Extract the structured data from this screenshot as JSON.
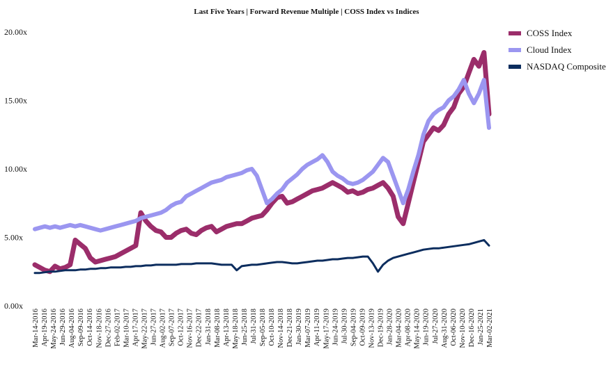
{
  "chart_data": {
    "type": "line",
    "title": "Last Five Years | Forward Revenue Multiple | COSS Index vs Indices",
    "xlabel": "",
    "ylabel": "",
    "ylim": [
      0,
      20
    ],
    "y_ticks": [
      "0.00x",
      "5.00x",
      "10.00x",
      "15.00x",
      "20.00x"
    ],
    "x_tick_labels": [
      "Mar-14-2016",
      "Apr-19-2016",
      "May-24-2016",
      "Jun-29-2016",
      "Aug-04-2016",
      "Sep-09-2016",
      "Oct-14-2016",
      "Nov-18-2016",
      "Dec-27-2016",
      "Feb-02-2017",
      "Mar-10-2017",
      "Apr-17-2017",
      "May-22-2017",
      "Jun-27-2017",
      "Aug-02-2017",
      "Sep-07-2017",
      "Oct-12-2017",
      "Nov-16-2017",
      "Dec-22-2017",
      "Jan-31-2018",
      "Mar-08-2018",
      "Apr-13-2018",
      "May-18-2018",
      "Jun-25-2018",
      "Jul-31-2018",
      "Sep-05-2018",
      "Oct-10-2018",
      "Nov-14-2018",
      "Dec-21-2018",
      "Jan-30-2019",
      "Mar-07-2019",
      "Apr-11-2019",
      "May-17-2019",
      "Jun-24-2019",
      "Jul-30-2019",
      "Sep-04-2019",
      "Oct-09-2019",
      "Nov-13-2019",
      "Dec-19-2019",
      "Jan-28-2020",
      "Mar-04-2020",
      "Apr-08-2020",
      "May-14-2020",
      "Jun-19-2020",
      "Jul-27-2020",
      "Aug-31-2020",
      "Oct-06-2020",
      "Nov-10-2020",
      "Dec-16-2020",
      "Jan-25-2021",
      "Mar-02-2021"
    ],
    "grid": false,
    "legend_position": "top-right",
    "series": [
      {
        "name": "COSS Index",
        "color": "#9b2d6a",
        "values": [
          3.0,
          2.8,
          2.6,
          2.5,
          2.9,
          2.7,
          2.8,
          3.0,
          4.8,
          4.5,
          4.2,
          3.5,
          3.2,
          3.3,
          3.4,
          3.5,
          3.6,
          3.8,
          4.0,
          4.2,
          4.4,
          6.8,
          6.2,
          5.8,
          5.5,
          5.4,
          5.0,
          5.0,
          5.3,
          5.5,
          5.6,
          5.3,
          5.2,
          5.5,
          5.7,
          5.8,
          5.4,
          5.6,
          5.8,
          5.9,
          6.0,
          6.0,
          6.2,
          6.4,
          6.5,
          6.6,
          7.0,
          7.5,
          7.9,
          8.0,
          7.5,
          7.6,
          7.8,
          8.0,
          8.2,
          8.4,
          8.5,
          8.6,
          8.8,
          9.0,
          8.8,
          8.6,
          8.3,
          8.4,
          8.2,
          8.3,
          8.5,
          8.6,
          8.8,
          9.0,
          8.6,
          8.0,
          6.5,
          6.0,
          7.5,
          9.0,
          10.5,
          12.0,
          12.5,
          13.0,
          12.8,
          13.2,
          14.0,
          14.5,
          15.5,
          16.0,
          17.0,
          18.0,
          17.5,
          18.5,
          14.0
        ]
      },
      {
        "name": "Cloud Index",
        "color": "#9b96f0",
        "values": [
          5.6,
          5.7,
          5.8,
          5.7,
          5.8,
          5.7,
          5.8,
          5.9,
          5.8,
          5.9,
          5.8,
          5.7,
          5.6,
          5.5,
          5.6,
          5.7,
          5.8,
          5.9,
          6.0,
          6.1,
          6.2,
          6.4,
          6.5,
          6.6,
          6.7,
          6.8,
          7.0,
          7.3,
          7.5,
          7.6,
          8.0,
          8.2,
          8.4,
          8.6,
          8.8,
          9.0,
          9.1,
          9.2,
          9.4,
          9.5,
          9.6,
          9.7,
          9.9,
          10.0,
          9.5,
          8.5,
          7.5,
          7.8,
          8.2,
          8.5,
          9.0,
          9.3,
          9.6,
          10.0,
          10.3,
          10.5,
          10.7,
          11.0,
          10.5,
          9.8,
          9.5,
          9.3,
          9.0,
          8.9,
          9.0,
          9.2,
          9.5,
          9.8,
          10.3,
          10.8,
          10.5,
          9.5,
          8.5,
          7.5,
          8.5,
          9.8,
          11.0,
          12.5,
          13.5,
          14.0,
          14.3,
          14.5,
          15.0,
          15.3,
          15.8,
          16.5,
          15.5,
          14.8,
          15.5,
          16.5,
          13.0
        ]
      },
      {
        "name": "NASDAQ Composite",
        "color": "#0c2d5e",
        "values": [
          2.4,
          2.4,
          2.45,
          2.5,
          2.5,
          2.55,
          2.6,
          2.6,
          2.6,
          2.65,
          2.65,
          2.7,
          2.7,
          2.75,
          2.75,
          2.8,
          2.8,
          2.8,
          2.85,
          2.85,
          2.9,
          2.9,
          2.95,
          2.95,
          3.0,
          3.0,
          3.0,
          3.0,
          3.0,
          3.05,
          3.05,
          3.05,
          3.1,
          3.1,
          3.1,
          3.1,
          3.05,
          3.0,
          3.0,
          3.0,
          2.6,
          2.9,
          2.95,
          3.0,
          3.0,
          3.05,
          3.1,
          3.15,
          3.2,
          3.2,
          3.15,
          3.1,
          3.1,
          3.15,
          3.2,
          3.25,
          3.3,
          3.3,
          3.35,
          3.4,
          3.4,
          3.45,
          3.5,
          3.5,
          3.55,
          3.6,
          3.6,
          3.1,
          2.5,
          3.0,
          3.3,
          3.5,
          3.6,
          3.7,
          3.8,
          3.9,
          4.0,
          4.1,
          4.15,
          4.2,
          4.2,
          4.25,
          4.3,
          4.35,
          4.4,
          4.45,
          4.5,
          4.6,
          4.7,
          4.8,
          4.4
        ]
      }
    ]
  }
}
